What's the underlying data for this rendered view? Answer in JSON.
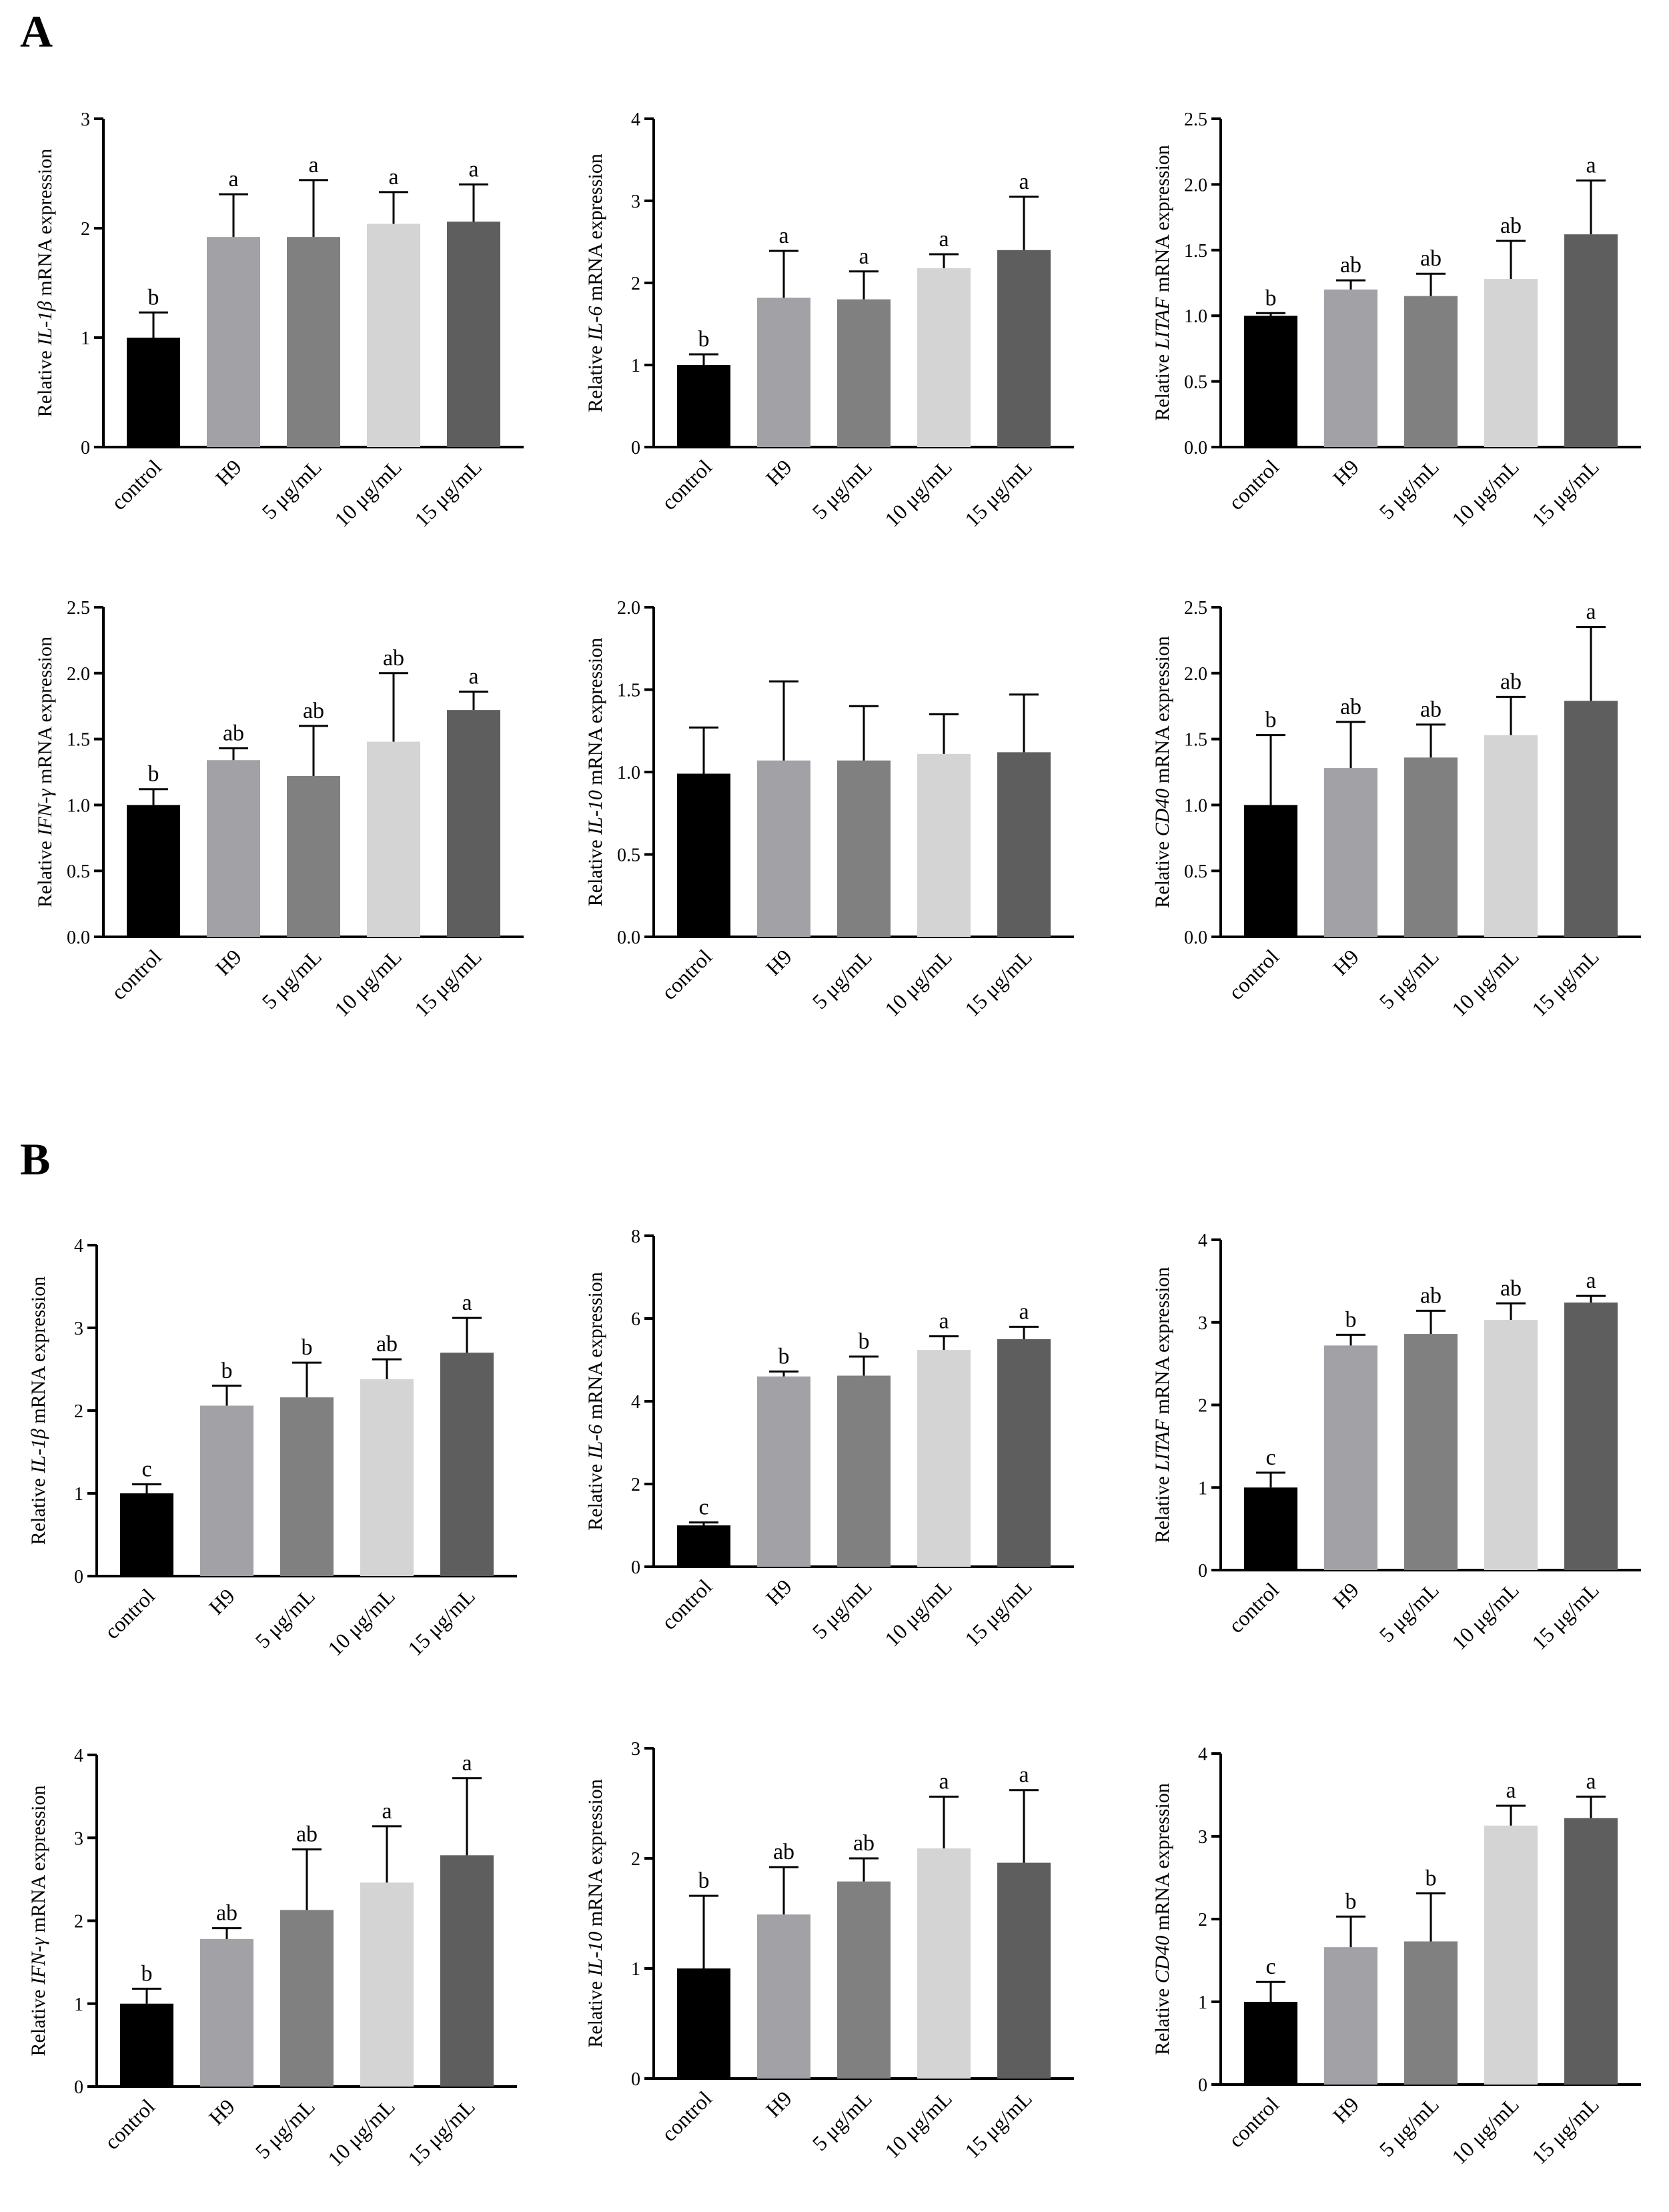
{
  "panels": [
    {
      "label": "A"
    },
    {
      "label": "B"
    }
  ],
  "chart_data": [
    {
      "type": "bar",
      "panel": "A",
      "gene": "IL-1β",
      "ylabel_pre": "Relative ",
      "ylabel_post": " mRNA expression",
      "categories": [
        "control",
        "H9",
        "5 μg/mL",
        "10 μg/mL",
        "15 μg/mL"
      ],
      "values": [
        1.0,
        1.92,
        1.92,
        2.04,
        2.06
      ],
      "errors": [
        0.23,
        0.39,
        0.52,
        0.29,
        0.34
      ],
      "letters": [
        "b",
        "a",
        "a",
        "a",
        "a"
      ],
      "ylim": [
        0,
        3
      ],
      "yticks": [
        "0",
        "1",
        "2",
        "3"
      ]
    },
    {
      "type": "bar",
      "panel": "A",
      "gene": "IL-6",
      "ylabel_pre": "Relative ",
      "ylabel_post": " mRNA expression",
      "categories": [
        "control",
        "H9",
        "5 μg/mL",
        "10 μg/mL",
        "15 μg/mL"
      ],
      "values": [
        1.0,
        1.82,
        1.8,
        2.18,
        2.4
      ],
      "errors": [
        0.13,
        0.57,
        0.34,
        0.17,
        0.65
      ],
      "letters": [
        "b",
        "a",
        "a",
        "a",
        "a"
      ],
      "ylim": [
        0,
        4
      ],
      "yticks": [
        "0",
        "1",
        "2",
        "3",
        "4"
      ]
    },
    {
      "type": "bar",
      "panel": "A",
      "gene": "LITAF",
      "ylabel_pre": "Relative ",
      "ylabel_post": " mRNA expression",
      "categories": [
        "control",
        "H9",
        "5 μg/mL",
        "10 μg/mL",
        "15 μg/mL"
      ],
      "values": [
        1.0,
        1.2,
        1.15,
        1.28,
        1.62
      ],
      "errors": [
        0.02,
        0.07,
        0.17,
        0.29,
        0.41
      ],
      "letters": [
        "b",
        "ab",
        "ab",
        "ab",
        "a"
      ],
      "ylim": [
        0,
        2.5
      ],
      "yticks": [
        "0.0",
        "0.5",
        "1.0",
        "1.5",
        "2.0",
        "2.5"
      ]
    },
    {
      "type": "bar",
      "panel": "A",
      "gene": "IFN-γ",
      "ylabel_pre": "Relative ",
      "ylabel_post": " mRNA expression",
      "categories": [
        "control",
        "H9",
        "5 μg/mL",
        "10 μg/mL",
        "15 μg/mL"
      ],
      "values": [
        1.0,
        1.34,
        1.22,
        1.48,
        1.72
      ],
      "errors": [
        0.12,
        0.09,
        0.38,
        0.52,
        0.14
      ],
      "letters": [
        "b",
        "ab",
        "ab",
        "ab",
        "a"
      ],
      "ylim": [
        0,
        2.5
      ],
      "yticks": [
        "0.0",
        "0.5",
        "1.0",
        "1.5",
        "2.0",
        "2.5"
      ]
    },
    {
      "type": "bar",
      "panel": "A",
      "gene": "IL-10",
      "ylabel_pre": "Relative ",
      "ylabel_post": " mRNA expression",
      "categories": [
        "control",
        "H9",
        "5 μg/mL",
        "10 μg/mL",
        "15 μg/mL"
      ],
      "values": [
        0.99,
        1.07,
        1.07,
        1.11,
        1.12
      ],
      "errors": [
        0.28,
        0.48,
        0.33,
        0.24,
        0.35
      ],
      "letters": [
        "",
        "",
        "",
        "",
        ""
      ],
      "ylim": [
        0,
        2.0
      ],
      "yticks": [
        "0.0",
        "0.5",
        "1.0",
        "1.5",
        "2.0"
      ]
    },
    {
      "type": "bar",
      "panel": "A",
      "gene": "CD40",
      "ylabel_pre": "Relative ",
      "ylabel_post": " mRNA expression",
      "categories": [
        "control",
        "H9",
        "5 μg/mL",
        "10 μg/mL",
        "15 μg/mL"
      ],
      "values": [
        1.0,
        1.28,
        1.36,
        1.53,
        1.79
      ],
      "errors": [
        0.53,
        0.35,
        0.25,
        0.29,
        0.56
      ],
      "letters": [
        "b",
        "ab",
        "ab",
        "ab",
        "a"
      ],
      "ylim": [
        0,
        2.5
      ],
      "yticks": [
        "0.0",
        "0.5",
        "1.0",
        "1.5",
        "2.0",
        "2.5"
      ]
    },
    {
      "type": "bar",
      "panel": "B",
      "gene": "IL-1β",
      "ylabel_pre": "Relative ",
      "ylabel_post": " mRNA expression",
      "categories": [
        "control",
        "H9",
        "5 μg/mL",
        "10 μg/mL",
        "15 μg/mL"
      ],
      "values": [
        1.0,
        2.06,
        2.16,
        2.38,
        2.7
      ],
      "errors": [
        0.11,
        0.24,
        0.42,
        0.24,
        0.42
      ],
      "letters": [
        "c",
        "b",
        "b",
        "ab",
        "a"
      ],
      "ylim": [
        0,
        4
      ],
      "yticks": [
        "0",
        "1",
        "2",
        "3",
        "4"
      ]
    },
    {
      "type": "bar",
      "panel": "B",
      "gene": "IL-6",
      "ylabel_pre": "Relative ",
      "ylabel_post": " mRNA expression",
      "categories": [
        "control",
        "H9",
        "5 μg/mL",
        "10 μg/mL",
        "15 μg/mL"
      ],
      "values": [
        1.0,
        4.6,
        4.62,
        5.24,
        5.5
      ],
      "errors": [
        0.07,
        0.12,
        0.46,
        0.33,
        0.3
      ],
      "letters": [
        "c",
        "b",
        "b",
        "a",
        "a"
      ],
      "ylim": [
        0,
        8
      ],
      "yticks": [
        "0",
        "2",
        "4",
        "6",
        "8"
      ]
    },
    {
      "type": "bar",
      "panel": "B",
      "gene": "LITAF",
      "ylabel_pre": "Relative ",
      "ylabel_post": " mRNA expression",
      "categories": [
        "control",
        "H9",
        "5 μg/mL",
        "10 μg/mL",
        "15 μg/mL"
      ],
      "values": [
        1.0,
        2.72,
        2.86,
        3.03,
        3.24
      ],
      "errors": [
        0.18,
        0.13,
        0.28,
        0.2,
        0.08
      ],
      "letters": [
        "c",
        "b",
        "ab",
        "ab",
        "a"
      ],
      "ylim": [
        0,
        4
      ],
      "yticks": [
        "0",
        "1",
        "2",
        "3",
        "4"
      ]
    },
    {
      "type": "bar",
      "panel": "B",
      "gene": "IFN-γ",
      "ylabel_pre": "Relative ",
      "ylabel_post": " mRNA expression",
      "categories": [
        "control",
        "H9",
        "5 μg/mL",
        "10 μg/mL",
        "15 μg/mL"
      ],
      "values": [
        1.0,
        1.78,
        2.13,
        2.46,
        2.79
      ],
      "errors": [
        0.18,
        0.13,
        0.73,
        0.68,
        0.93
      ],
      "letters": [
        "b",
        "ab",
        "ab",
        "a",
        "a"
      ],
      "ylim": [
        0,
        4
      ],
      "yticks": [
        "0",
        "1",
        "2",
        "3",
        "4"
      ]
    },
    {
      "type": "bar",
      "panel": "B",
      "gene": "IL-10",
      "ylabel_pre": "Relative ",
      "ylabel_post": " mRNA expression",
      "categories": [
        "control",
        "H9",
        "5 μg/mL",
        "10 μg/mL",
        "15 μg/mL"
      ],
      "values": [
        1.0,
        1.49,
        1.79,
        2.09,
        1.96
      ],
      "errors": [
        0.66,
        0.43,
        0.21,
        0.47,
        0.66
      ],
      "letters": [
        "b",
        "ab",
        "ab",
        "a",
        "a"
      ],
      "ylim": [
        0,
        3
      ],
      "yticks": [
        "0",
        "1",
        "2",
        "3"
      ]
    },
    {
      "type": "bar",
      "panel": "B",
      "gene": "CD40",
      "ylabel_pre": "Relative ",
      "ylabel_post": " mRNA expression",
      "categories": [
        "control",
        "H9",
        "5 μg/mL",
        "10 μg/mL",
        "15 μg/mL"
      ],
      "values": [
        1.0,
        1.66,
        1.73,
        3.13,
        3.22
      ],
      "errors": [
        0.24,
        0.37,
        0.58,
        0.24,
        0.26
      ],
      "letters": [
        "c",
        "b",
        "b",
        "a",
        "a"
      ],
      "ylim": [
        0,
        4
      ],
      "yticks": [
        "0",
        "1",
        "2",
        "3",
        "4"
      ]
    }
  ],
  "colors": {
    "bars": [
      "#000000",
      "#a2a2a6",
      "#808080",
      "#d4d4d4",
      "#5e5e5e"
    ],
    "axis": "#000000",
    "background": "#ffffff"
  }
}
